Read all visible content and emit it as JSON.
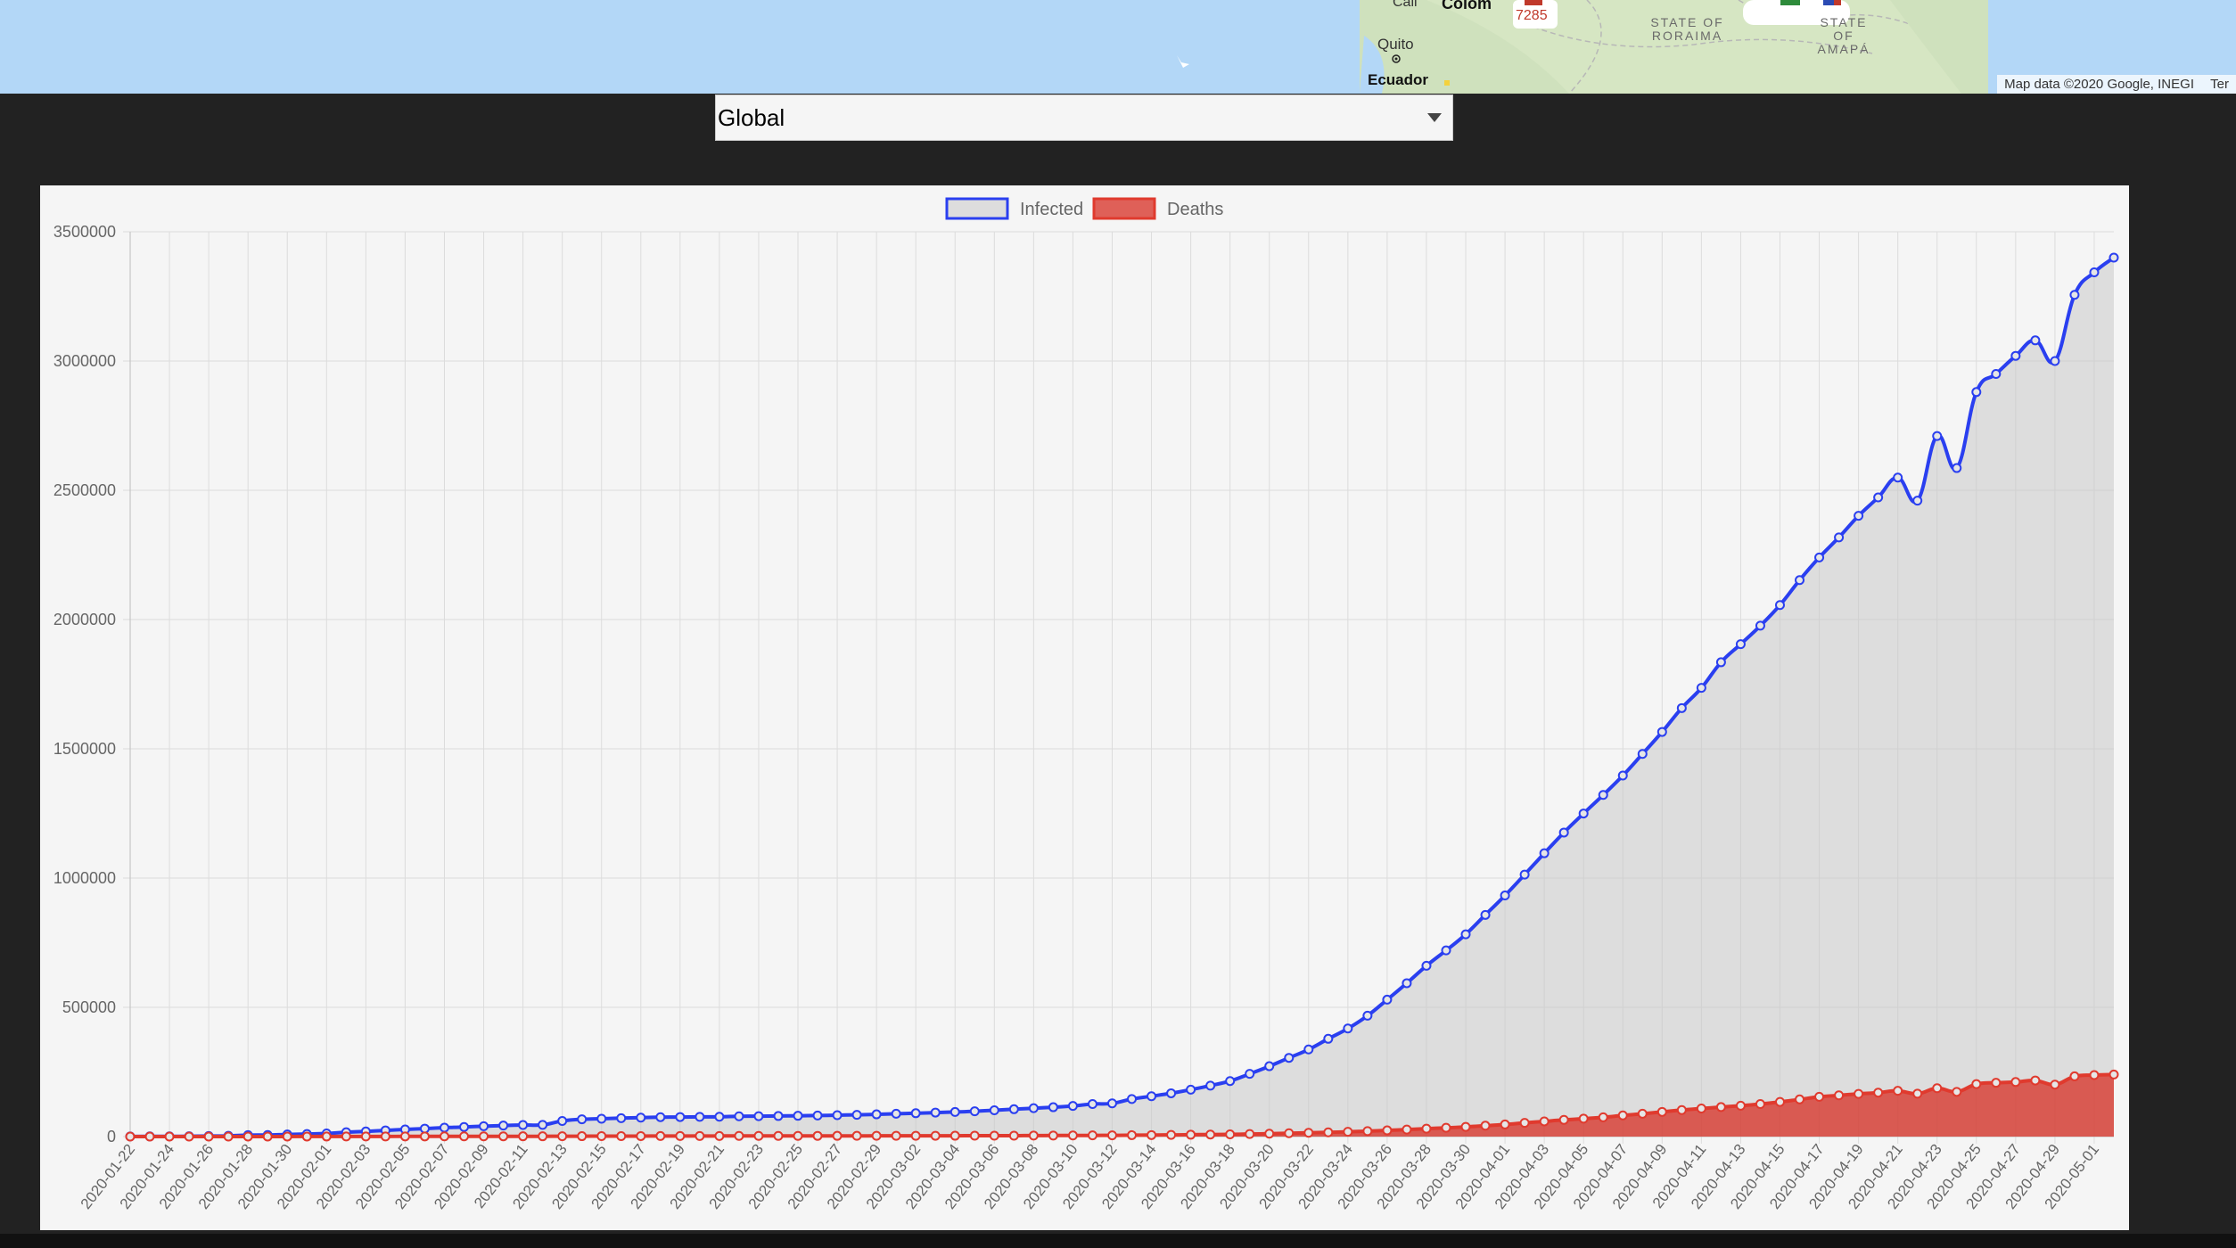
{
  "map": {
    "labels": {
      "cali": "Cali",
      "colombia": "Colom",
      "badge_count": "7285",
      "roraima": "STATE OF RORAIMA",
      "amapa": "STATE OF AMAPÁ",
      "quito": "Quito",
      "ecuador": "Ecuador"
    },
    "attribution": "Map data ©2020 Google, INEGI",
    "terms": "Ter"
  },
  "selector": {
    "value": "Global"
  },
  "chart_data": {
    "type": "line",
    "legend": {
      "placement": "top-center",
      "entries": [
        "Infected",
        "Deaths"
      ]
    },
    "ylim": [
      0,
      3500000
    ],
    "yticks": [
      0,
      500000,
      1000000,
      1500000,
      2000000,
      2500000,
      3000000,
      3500000
    ],
    "grid": true,
    "x_start": "2020-01-22",
    "x_end": "2020-05-02",
    "series": [
      {
        "name": "Infected",
        "color": "#2a3ff0",
        "fill": "rgba(200,200,200,0.55)",
        "values": [
          555,
          654,
          941,
          1434,
          2118,
          2927,
          5578,
          6166,
          8234,
          9927,
          12038,
          16787,
          19881,
          23892,
          27635,
          30794,
          34391,
          37120,
          40150,
          42762,
          44802,
          45221,
          60368,
          66885,
          69030,
          71224,
          73258,
          75136,
          75639,
          76197,
          76819,
          78572,
          78958,
          79561,
          80406,
          81388,
          82746,
          84112,
          86011,
          88369,
          90306,
          92840,
          95120,
          97886,
          101800,
          105847,
          109821,
          113590,
          118620,
          125875,
          128352,
          145205,
          156101,
          167454,
          181574,
          197102,
          214821,
          242570,
          272208,
          304507,
          336953,
          378235,
          418045,
          467653,
          529591,
          593291,
          660706,
          720117,
          782365,
          857487,
          932605,
          1013466,
          1095917,
          1176060,
          1249754,
          1321481,
          1396476,
          1480202,
          1565278,
          1657526,
          1735650,
          1834721,
          1904838,
          1976191,
          2056054,
          2152437,
          2240190,
          2317759,
          2401379,
          2472259,
          2549123,
          2460000,
          2710000,
          2586000,
          2880000,
          2950000,
          3020000,
          3080000,
          3000000,
          3256000,
          3343000,
          3400000
        ]
      },
      {
        "name": "Deaths",
        "color": "#e03a2e",
        "fill": "rgba(215,45,35,0.75)",
        "values": [
          17,
          18,
          26,
          42,
          56,
          82,
          131,
          133,
          171,
          213,
          259,
          362,
          426,
          492,
          564,
          634,
          719,
          806,
          906,
          1013,
          1113,
          1118,
          1371,
          1523,
          1666,
          1770,
          1868,
          2007,
          2122,
          2247,
          2251,
          2458,
          2469,
          2629,
          2708,
          2770,
          2814,
          2872,
          2941,
          2996,
          3085,
          3160,
          3254,
          3348,
          3460,
          3558,
          3803,
          3996,
          4262,
          4615,
          4720,
          5404,
          5819,
          6440,
          7126,
          7905,
          8733,
          9867,
          11299,
          12973,
          14651,
          16505,
          18625,
          21181,
          23970,
          27198,
          30652,
          33925,
          37582,
          42107,
          46809,
          52983,
          58787,
          64606,
          69374,
          74565,
          81865,
          88338,
          95455,
          102525,
          108503,
          114090,
          119482,
          125984,
          134177,
          143800,
          153822,
          159510,
          165044,
          169986,
          177000,
          166000,
          187000,
          173000,
          203000,
          208000,
          211000,
          217000,
          201000,
          233000,
          238000,
          240000
        ]
      }
    ]
  }
}
